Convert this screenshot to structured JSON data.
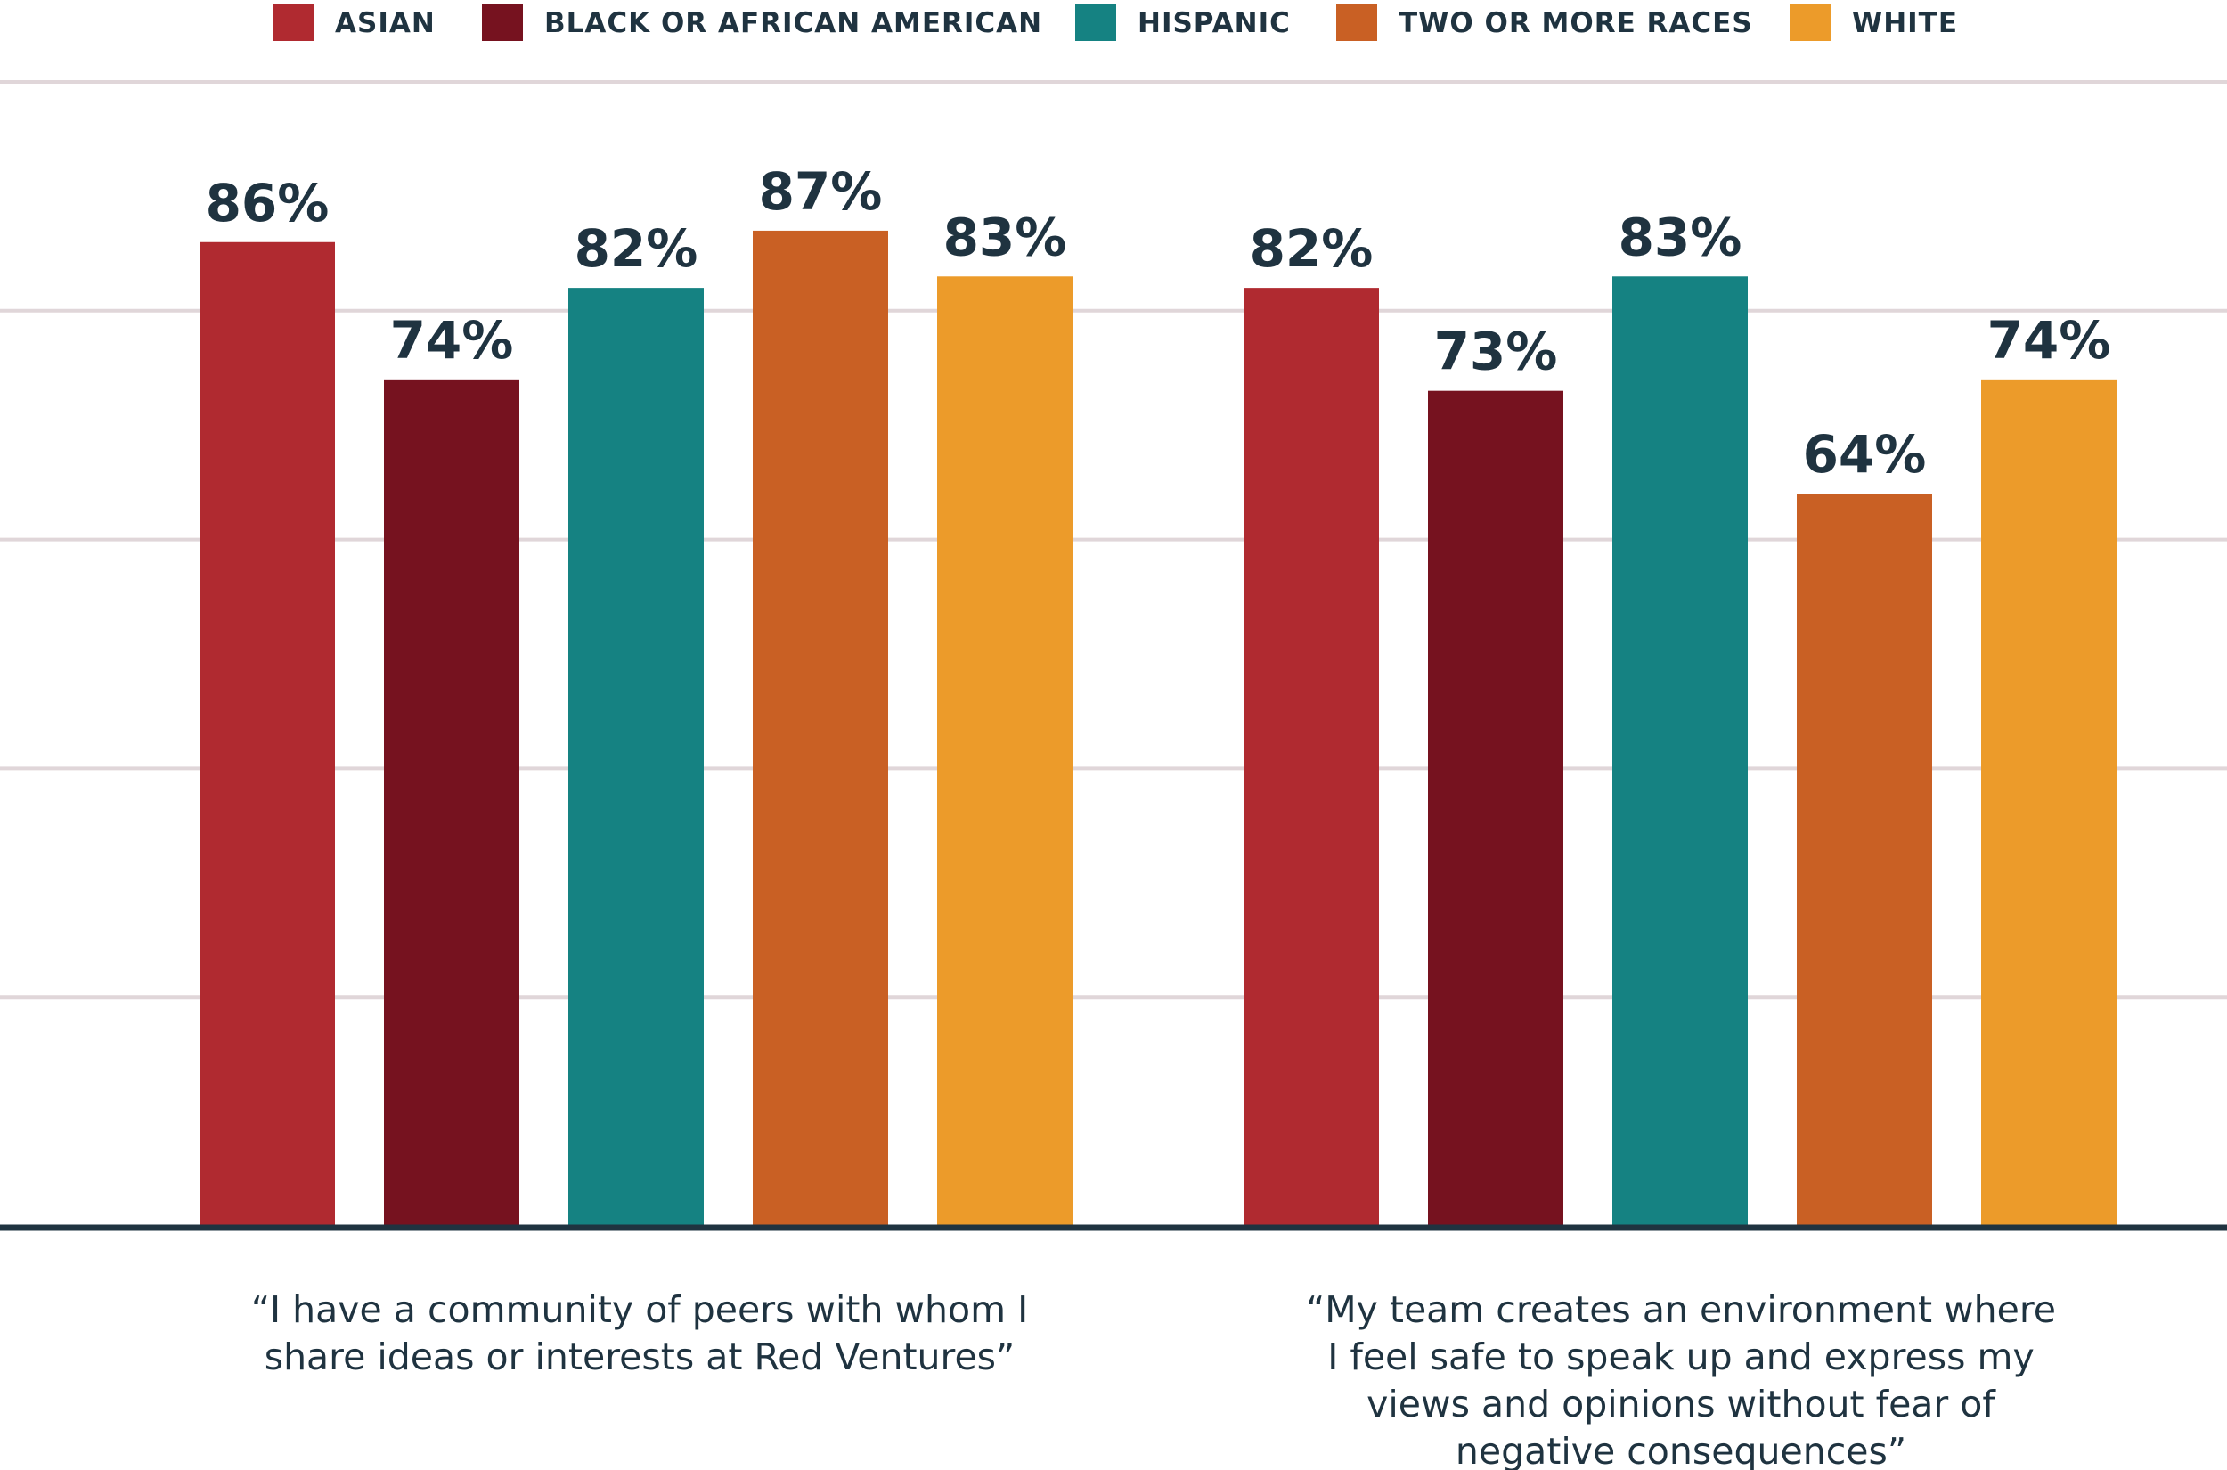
{
  "colors": {
    "asian": "#b02a30",
    "black": "#76121f",
    "hispanic": "#158282",
    "two_or_more": "#c96024",
    "white": "#ec9b2a",
    "text": "#1f3340",
    "grid": "#e0d6d9",
    "axis": "#1f3340"
  },
  "chart_data": {
    "type": "bar",
    "title": "",
    "xlabel": "",
    "ylabel": "",
    "ylim": [
      0,
      100
    ],
    "grid": true,
    "legend_position": "top",
    "categories": [
      [
        "“I have a community of peers with whom I",
        "share ideas or interests at Red Ventures”"
      ],
      [
        "“My team creates an environment where",
        "I feel safe to speak up and express my",
        "views and opinions without fear of",
        "negative consequences”"
      ]
    ],
    "series": [
      {
        "name": "ASIAN",
        "color": "#b02a30",
        "values": [
          86,
          82
        ],
        "labels": [
          "86%",
          "82%"
        ]
      },
      {
        "name": "BLACK OR AFRICAN AMERICAN",
        "color": "#76121f",
        "values": [
          74,
          73
        ],
        "labels": [
          "74%",
          "73%"
        ]
      },
      {
        "name": "HISPANIC",
        "color": "#158282",
        "values": [
          82,
          83
        ],
        "labels": [
          "82%",
          "83%"
        ]
      },
      {
        "name": "TWO OR MORE RACES",
        "color": "#c96024",
        "values": [
          87,
          64
        ],
        "labels": [
          "87%",
          "64%"
        ]
      },
      {
        "name": "WHITE",
        "color": "#ec9b2a",
        "values": [
          83,
          74
        ],
        "labels": [
          "83%",
          "74%"
        ]
      }
    ]
  }
}
